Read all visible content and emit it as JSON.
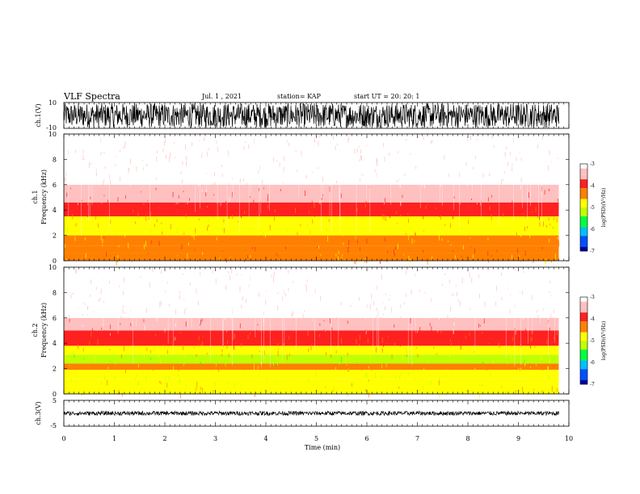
{
  "header": {
    "title": "VLF Spectra",
    "date": "Jul. 1 , 2021",
    "station": "station= KAP",
    "start_ut": "start UT = 20: 20: 1"
  },
  "colors": {
    "colormap": [
      "#0000a0",
      "#0050ff",
      "#00c0ff",
      "#00ff40",
      "#c0ff00",
      "#ffff00",
      "#ff8000",
      "#ff2020",
      "#ffc0c0",
      "#ffffff"
    ]
  },
  "chart_data": [
    {
      "type": "line",
      "id": "ch1-waveform",
      "ylabel": "ch.1(V)",
      "ylim": [
        -10,
        10
      ],
      "yticks": [
        "10",
        "-10"
      ],
      "xlim": [
        0,
        10
      ],
      "series": [
        {
          "name": "",
          "color": "#000000",
          "amplitude_range": [
            -9.5,
            9.5
          ],
          "x_extent": [
            0,
            9.8
          ]
        }
      ]
    },
    {
      "type": "heatmap",
      "id": "ch1-spectrogram",
      "ylabel": "ch.1\nFrequency (kHz)",
      "xlim": [
        0,
        10
      ],
      "ylim": [
        0,
        10
      ],
      "yticks": [
        "0",
        "2",
        "4",
        "6",
        "8",
        "10"
      ],
      "x_extent": [
        0,
        9.8
      ],
      "colorbar": {
        "label": "log(PSD)(V²/Hz)",
        "range": [
          -7,
          -3
        ],
        "ticks": [
          "-3",
          "-4",
          "-5",
          "-6",
          "-7"
        ]
      },
      "bands_khz": [
        {
          "from": 0.0,
          "to": 0.6,
          "level": -4.5
        },
        {
          "from": 0.6,
          "to": 1.2,
          "level": -4.2
        },
        {
          "from": 1.2,
          "to": 2.0,
          "level": -4.5
        },
        {
          "from": 2.0,
          "to": 2.8,
          "level": -4.7
        },
        {
          "from": 2.8,
          "to": 3.5,
          "level": -4.6
        },
        {
          "from": 3.5,
          "to": 4.6,
          "level": -4.1
        },
        {
          "from": 4.6,
          "to": 6.0,
          "level": -3.6
        },
        {
          "from": 6.0,
          "to": 10.0,
          "level": -3.2
        }
      ]
    },
    {
      "type": "heatmap",
      "id": "ch2-spectrogram",
      "ylabel": "ch.2\nFrequency (kHz)",
      "xlim": [
        0,
        10
      ],
      "ylim": [
        0,
        10
      ],
      "yticks": [
        "0",
        "2",
        "4",
        "6",
        "8",
        "10"
      ],
      "x_extent": [
        0,
        9.8
      ],
      "colorbar": {
        "label": "log(PSD)(V²/Hz)",
        "range": [
          -7,
          -3
        ],
        "ticks": [
          "-3",
          "-4",
          "-5",
          "-6",
          "-7"
        ]
      },
      "bands_khz": [
        {
          "from": 0.0,
          "to": 0.6,
          "level": -4.6
        },
        {
          "from": 0.6,
          "to": 1.2,
          "level": -4.8
        },
        {
          "from": 1.2,
          "to": 1.9,
          "level": -5.0
        },
        {
          "from": 1.9,
          "to": 2.4,
          "level": -4.5
        },
        {
          "from": 2.4,
          "to": 3.1,
          "level": -5.1
        },
        {
          "from": 3.1,
          "to": 3.8,
          "level": -4.6
        },
        {
          "from": 3.8,
          "to": 5.0,
          "level": -4.1
        },
        {
          "from": 5.0,
          "to": 6.0,
          "level": -3.6
        },
        {
          "from": 6.0,
          "to": 10.0,
          "level": -3.2
        }
      ]
    },
    {
      "type": "line",
      "id": "ch3-waveform",
      "ylabel": "ch.3(V)",
      "ylim": [
        -5,
        5
      ],
      "yticks": [
        "5",
        "-5"
      ],
      "xlim": [
        0,
        10
      ],
      "xlabel": "Time (min)",
      "xticks": [
        "0",
        "1",
        "2",
        "3",
        "4",
        "5",
        "6",
        "7",
        "8",
        "9",
        "10"
      ],
      "series": [
        {
          "name": "",
          "color": "#000000",
          "amplitude_range": [
            -0.8,
            0.8
          ],
          "x_extent": [
            0,
            9.8
          ]
        }
      ]
    }
  ]
}
